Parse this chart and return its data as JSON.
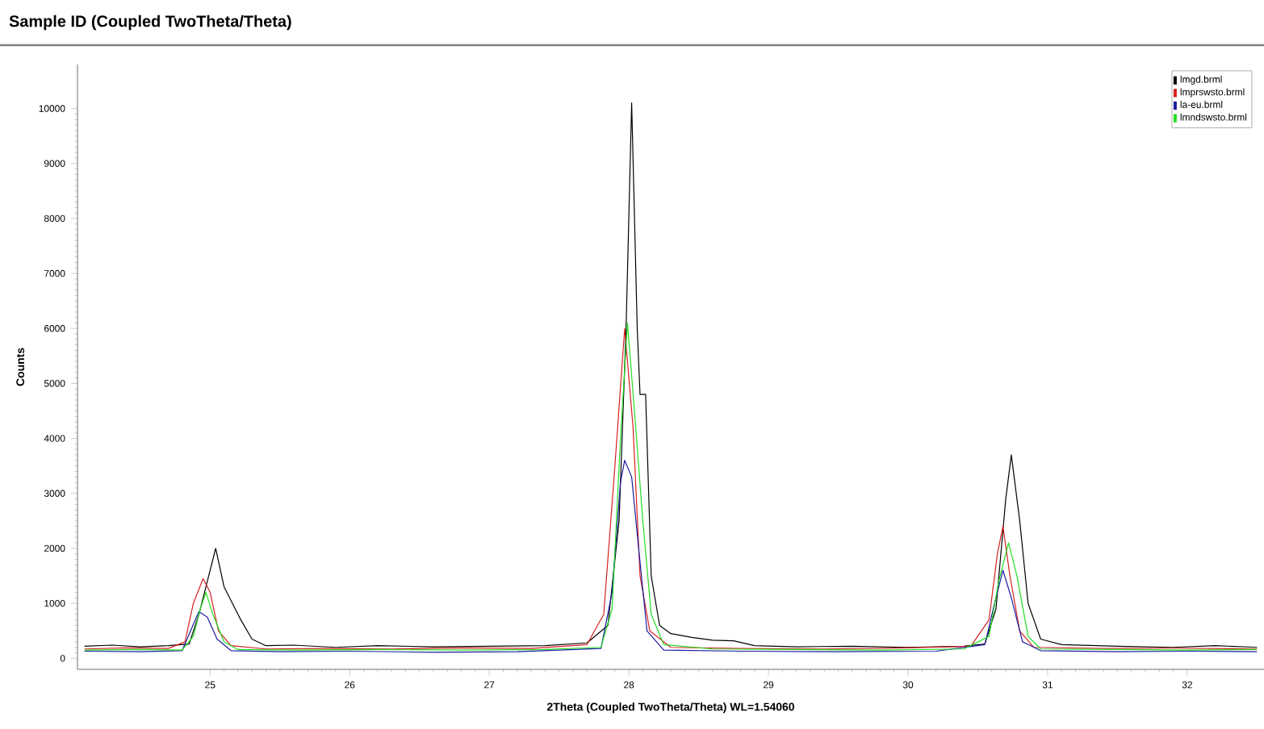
{
  "chart_data": {
    "type": "line",
    "title": "Sample ID (Coupled TwoTheta/Theta)",
    "xlabel": "2Theta (Coupled TwoTheta/Theta) WL=1.54060",
    "ylabel": "Counts",
    "xlim": [
      24.05,
      32.55
    ],
    "ylim": [
      -200,
      10800
    ],
    "xticks": [
      25,
      26,
      27,
      28,
      29,
      30,
      31,
      32
    ],
    "yticks": [
      0,
      1000,
      2000,
      3000,
      4000,
      5000,
      6000,
      7000,
      8000,
      9000,
      10000
    ],
    "legend": "top right",
    "grid": false,
    "marker": "none",
    "line_style": "solid",
    "series": [
      {
        "name": "lmgd.brml",
        "color": "#000000",
        "x": [
          24.1,
          24.3,
          24.5,
          24.7,
          24.85,
          24.92,
          24.98,
          25.04,
          25.1,
          25.16,
          25.22,
          25.3,
          25.4,
          25.6,
          25.9,
          26.2,
          26.6,
          27.0,
          27.4,
          27.7,
          27.85,
          27.93,
          27.98,
          28.02,
          28.06,
          28.08,
          28.12,
          28.16,
          28.22,
          28.3,
          28.45,
          28.6,
          28.75,
          28.9,
          29.2,
          29.6,
          30.0,
          30.4,
          30.55,
          30.63,
          30.7,
          30.74,
          30.8,
          30.86,
          30.95,
          31.1,
          31.5,
          31.9,
          32.2,
          32.5
        ],
        "values": [
          220,
          240,
          210,
          230,
          260,
          800,
          1400,
          2000,
          1300,
          1000,
          700,
          350,
          230,
          240,
          200,
          230,
          210,
          220,
          230,
          280,
          600,
          2500,
          6000,
          10100,
          6000,
          4800,
          4800,
          1500,
          600,
          450,
          380,
          330,
          320,
          230,
          210,
          220,
          200,
          220,
          260,
          900,
          2900,
          3700,
          2500,
          1000,
          350,
          250,
          220,
          200,
          230,
          200
        ]
      },
      {
        "name": "lmprswsto.brml",
        "color": "#d62020",
        "x": [
          24.1,
          24.4,
          24.7,
          24.82,
          24.88,
          24.95,
          25.0,
          25.06,
          25.15,
          25.4,
          25.8,
          26.3,
          26.8,
          27.3,
          27.7,
          27.82,
          27.9,
          27.97,
          28.03,
          28.08,
          28.15,
          28.3,
          28.8,
          29.4,
          30.0,
          30.45,
          30.58,
          30.64,
          30.68,
          30.73,
          30.8,
          30.9,
          31.4,
          31.9,
          32.5
        ],
        "values": [
          170,
          190,
          180,
          300,
          1000,
          1450,
          1200,
          500,
          230,
          170,
          180,
          170,
          190,
          180,
          250,
          800,
          3500,
          6000,
          4200,
          1500,
          500,
          200,
          180,
          170,
          190,
          220,
          700,
          1900,
          2400,
          1500,
          500,
          200,
          180,
          185,
          170
        ]
      },
      {
        "name": "la-eu.brml",
        "color": "#1a1aa0",
        "x": [
          24.1,
          24.5,
          24.8,
          24.86,
          24.92,
          24.98,
          25.05,
          25.15,
          25.5,
          26.0,
          26.6,
          27.2,
          27.8,
          27.88,
          27.94,
          27.97,
          28.02,
          28.07,
          28.13,
          28.25,
          28.8,
          29.5,
          30.2,
          30.55,
          30.62,
          30.68,
          30.74,
          30.82,
          30.95,
          31.5,
          32.0,
          32.5
        ],
        "values": [
          130,
          120,
          140,
          500,
          850,
          750,
          350,
          140,
          120,
          130,
          110,
          120,
          180,
          1200,
          3200,
          3600,
          3300,
          2000,
          500,
          150,
          130,
          120,
          130,
          250,
          1000,
          1600,
          1100,
          300,
          140,
          120,
          130,
          120
        ]
      },
      {
        "name": "lmndswsto.brml",
        "color": "#22dd22",
        "x": [
          24.1,
          24.5,
          24.8,
          24.88,
          24.93,
          24.97,
          25.02,
          25.1,
          25.2,
          25.6,
          26.2,
          26.8,
          27.4,
          27.8,
          27.88,
          27.94,
          27.99,
          28.04,
          28.1,
          28.16,
          28.25,
          28.6,
          29.2,
          29.8,
          30.4,
          30.58,
          30.65,
          30.72,
          30.78,
          30.86,
          30.95,
          31.5,
          32.0,
          32.5
        ],
        "values": [
          150,
          160,
          150,
          400,
          900,
          1200,
          800,
          300,
          160,
          150,
          160,
          150,
          160,
          200,
          900,
          4000,
          6100,
          4500,
          2500,
          800,
          250,
          170,
          160,
          150,
          170,
          400,
          1400,
          2100,
          1500,
          400,
          170,
          160,
          150,
          160
        ]
      }
    ]
  }
}
